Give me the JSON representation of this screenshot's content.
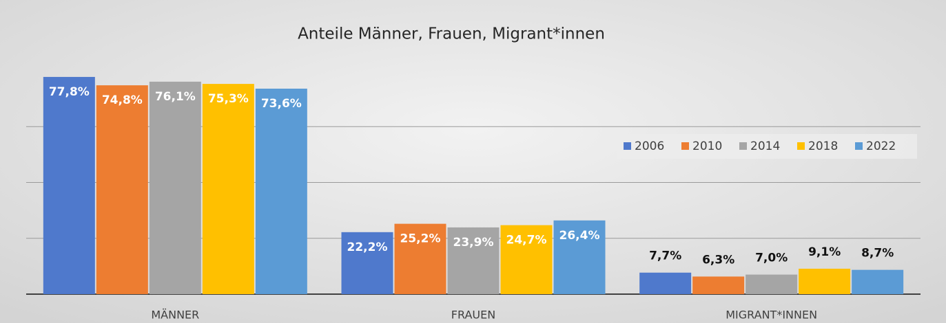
{
  "chart_data": {
    "type": "bar",
    "title": "Anteile Männer, Frauen, Migrant*innen",
    "categories": [
      "MÄNNER",
      "FRAUEN",
      "MIGRANT*INNEN"
    ],
    "series": [
      {
        "name": "2006",
        "color": "#4f79cc",
        "values": [
          77.8,
          22.2,
          7.7
        ],
        "value_labels": [
          "77,8%",
          "22,2%",
          "7,7%"
        ]
      },
      {
        "name": "2010",
        "color": "#ed7d31",
        "values": [
          74.8,
          25.2,
          6.3
        ],
        "value_labels": [
          "74,8%",
          "25,2%",
          "6,3%"
        ]
      },
      {
        "name": "2014",
        "color": "#a5a5a5",
        "values": [
          76.1,
          23.9,
          7.0
        ],
        "value_labels": [
          "76,1%",
          "23,9%",
          "7,0%"
        ]
      },
      {
        "name": "2018",
        "color": "#ffc000",
        "values": [
          75.3,
          24.7,
          9.1
        ],
        "value_labels": [
          "75,3%",
          "24,7%",
          "9,1%"
        ]
      },
      {
        "name": "2022",
        "color": "#5b9bd5",
        "values": [
          73.6,
          26.4,
          8.7
        ],
        "value_labels": [
          "73,6%",
          "26,4%",
          "8,7%"
        ]
      }
    ],
    "ylim": [
      0,
      80
    ],
    "yticks": [
      0,
      20,
      40,
      60
    ],
    "grid": true
  }
}
